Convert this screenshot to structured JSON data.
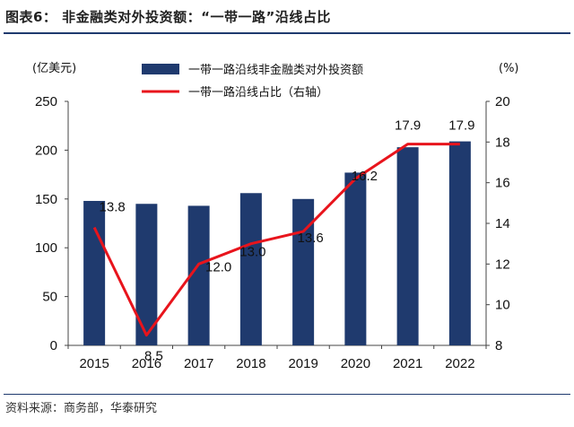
{
  "figure": {
    "title": "图表6：  非金融类对外投资额：“一带一路”沿线占比",
    "source": "资料来源：商务部，华泰研究"
  },
  "chart_data": {
    "type": "bar",
    "categories": [
      "2015",
      "2016",
      "2017",
      "2018",
      "2019",
      "2020",
      "2021",
      "2022"
    ],
    "series": [
      {
        "name": "一带一路沿线非金融类对外投资额",
        "type": "bar",
        "axis": "left",
        "color": "#1f3a6e",
        "values": [
          148,
          145,
          143,
          156,
          150,
          177,
          203,
          209
        ]
      },
      {
        "name": "一带一路沿线占比（右轴）",
        "type": "line",
        "axis": "right",
        "color": "#e8141c",
        "values": [
          13.8,
          8.5,
          12.0,
          13.0,
          13.6,
          16.2,
          17.9,
          17.9
        ],
        "labels": [
          "13.8",
          "8.5",
          "12.0",
          "13.0",
          "13.6",
          "16.2",
          "17.9",
          "17.9"
        ]
      }
    ],
    "y_left": {
      "unit": "(亿美元)",
      "ylim": [
        0,
        250
      ],
      "ticks": [
        "0",
        "50",
        "100",
        "150",
        "200",
        "250"
      ]
    },
    "y_right": {
      "unit": "(%)",
      "ylim": [
        8,
        20
      ],
      "ticks": [
        "8",
        "10",
        "12",
        "14",
        "16",
        "18",
        "20"
      ]
    },
    "legend_position": "top",
    "grid": false
  }
}
